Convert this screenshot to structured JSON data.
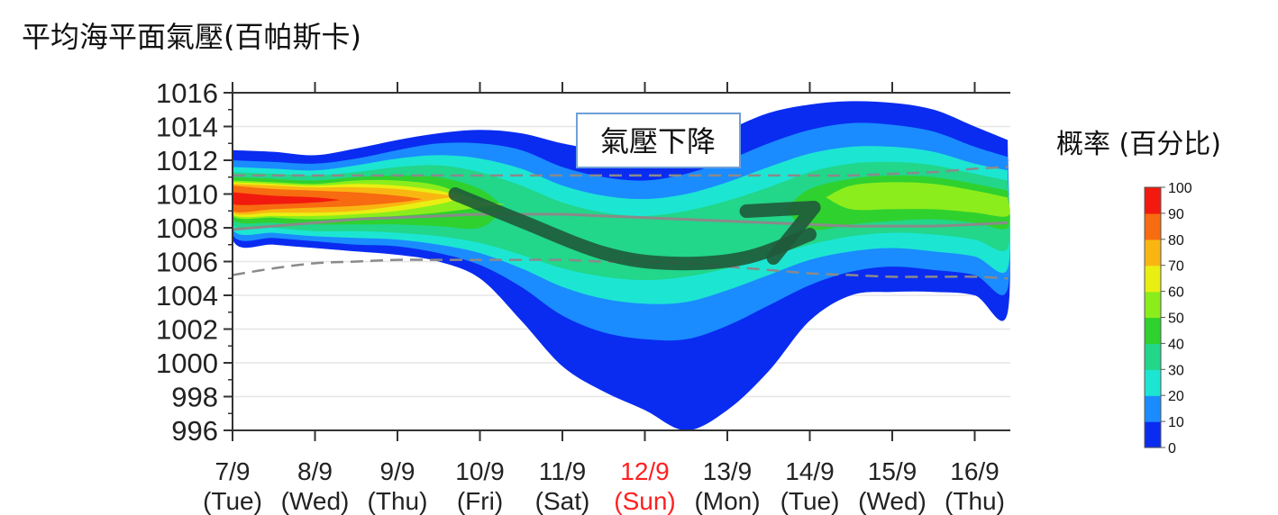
{
  "chart_data": {
    "type": "area",
    "title": "平均海平面氣壓(百帕斯卡)",
    "xlabel": "",
    "ylabel": "",
    "ylim": [
      996,
      1016
    ],
    "yticks": [
      996,
      998,
      1000,
      1002,
      1004,
      1006,
      1008,
      1010,
      1012,
      1014,
      1016
    ],
    "categories": [
      {
        "date": "7/9",
        "day": "(Tue)",
        "highlight": false
      },
      {
        "date": "8/9",
        "day": "(Wed)",
        "highlight": false
      },
      {
        "date": "9/9",
        "day": "(Thu)",
        "highlight": false
      },
      {
        "date": "10/9",
        "day": "(Fri)",
        "highlight": false
      },
      {
        "date": "11/9",
        "day": "(Sat)",
        "highlight": false
      },
      {
        "date": "12/9",
        "day": "(Sun)",
        "highlight": true
      },
      {
        "date": "13/9",
        "day": "(Mon)",
        "highlight": false
      },
      {
        "date": "14/9",
        "day": "(Tue)",
        "highlight": false
      },
      {
        "date": "15/9",
        "day": "(Wed)",
        "highlight": false
      },
      {
        "date": "16/9",
        "day": "(Thu)",
        "highlight": false
      }
    ],
    "x": [
      0,
      0.5,
      1,
      1.5,
      2,
      2.5,
      3,
      3.5,
      4,
      4.5,
      5,
      5.5,
      6,
      6.5,
      7,
      7.5,
      8,
      8.5,
      9,
      9.4
    ],
    "bands": [
      {
        "level": 0,
        "upper": [
          1012.6,
          1012.5,
          1012.3,
          1012.7,
          1013.2,
          1013.6,
          1013.8,
          1013.6,
          1013.0,
          1012.6,
          1012.5,
          1012.9,
          1013.8,
          1014.8,
          1015.3,
          1015.5,
          1015.4,
          1015.0,
          1014.0,
          1013.2
        ],
        "lower": [
          1007.3,
          1007.0,
          1006.8,
          1006.6,
          1006.4,
          1006.0,
          1005.0,
          1002.5,
          999.8,
          998.3,
          997.2,
          996.0,
          997.2,
          999.5,
          1002.5,
          1004.0,
          1004.2,
          1004.2,
          1004.0,
          1003.0
        ]
      },
      {
        "level": 10,
        "upper": [
          1012.0,
          1011.9,
          1011.8,
          1012.1,
          1012.6,
          1013.0,
          1013.0,
          1012.6,
          1011.6,
          1011.0,
          1010.8,
          1011.2,
          1012.0,
          1013.0,
          1013.8,
          1014.2,
          1014.1,
          1013.7,
          1012.8,
          1012.2
        ],
        "lower": [
          1007.6,
          1007.4,
          1007.2,
          1007.0,
          1006.9,
          1006.5,
          1005.8,
          1004.5,
          1002.8,
          1001.8,
          1001.4,
          1001.4,
          1002.2,
          1003.4,
          1004.6,
          1005.4,
          1005.7,
          1005.5,
          1005.2,
          1004.4
        ]
      },
      {
        "level": 20,
        "upper": [
          1011.6,
          1011.5,
          1011.4,
          1011.7,
          1012.1,
          1012.3,
          1012.1,
          1011.5,
          1010.5,
          1009.9,
          1009.7,
          1010.0,
          1010.7,
          1011.6,
          1012.4,
          1012.8,
          1012.8,
          1012.5,
          1011.8,
          1011.4
        ],
        "lower": [
          1007.9,
          1007.7,
          1007.5,
          1007.4,
          1007.3,
          1007.0,
          1006.5,
          1005.6,
          1004.5,
          1003.8,
          1003.5,
          1003.6,
          1004.3,
          1005.2,
          1006.1,
          1006.6,
          1006.8,
          1006.6,
          1006.3,
          1005.6
        ]
      },
      {
        "level": 30,
        "upper": [
          1011.3,
          1011.2,
          1011.1,
          1011.3,
          1011.6,
          1011.7,
          1011.3,
          1010.5,
          1009.5,
          1008.9,
          1008.7,
          1009.0,
          1009.6,
          1010.4,
          1011.3,
          1011.8,
          1011.9,
          1011.7,
          1011.2,
          1010.8
        ],
        "lower": [
          1008.2,
          1008.0,
          1007.8,
          1007.8,
          1007.7,
          1007.5,
          1007.1,
          1006.4,
          1005.6,
          1005.1,
          1004.9,
          1005.1,
          1005.6,
          1006.3,
          1007.0,
          1007.5,
          1007.7,
          1007.6,
          1007.3,
          1006.8
        ]
      },
      {
        "level": 40,
        "upper": [
          1011.0,
          1010.9,
          1010.8,
          1011.0,
          1011.1,
          1011.0,
          1010.3,
          1000.0,
          1000.0,
          1000.0,
          1000.0,
          1000.0,
          1000.0,
          1000.0,
          1010.3,
          1010.9,
          1011.1,
          1011.0,
          1010.6,
          1010.2
        ],
        "lower": [
          1008.5,
          1008.3,
          1008.2,
          1008.2,
          1008.2,
          1008.1,
          1008.0,
          1000.0,
          1000.0,
          1000.0,
          1000.0,
          1000.0,
          1000.0,
          1000.0,
          1007.9,
          1008.2,
          1008.4,
          1008.5,
          1008.3,
          1008.0
        ]
      },
      {
        "level": 50,
        "upper": [
          1010.8,
          1010.7,
          1010.6,
          1010.8,
          1010.8,
          1010.5,
          1009.6,
          1000.0,
          1000.0,
          1000.0,
          1000.0,
          1000.0,
          1000.0,
          1000.0,
          1000.0,
          1010.5,
          1010.7,
          1010.6,
          1010.2,
          1009.8
        ],
        "lower": [
          1008.7,
          1008.6,
          1008.5,
          1008.6,
          1008.7,
          1008.9,
          1009.2,
          1000.0,
          1000.0,
          1000.0,
          1000.0,
          1000.0,
          1000.0,
          1000.0,
          1000.0,
          1009.1,
          1009.1,
          1009.1,
          1008.9,
          1008.7
        ]
      },
      {
        "level": 60,
        "upper": [
          1010.7,
          1010.6,
          1010.5,
          1010.6,
          1010.5,
          1010.2,
          1000.0,
          1000.0,
          1000.0,
          1000.0,
          1000.0,
          1000.0,
          1000.0,
          1000.0,
          1000.0,
          1000.0,
          1000.0,
          1000.0,
          1000.0,
          1000.0
        ],
        "lower": [
          1008.8,
          1008.7,
          1008.7,
          1008.8,
          1009.0,
          1009.4,
          1000.0,
          1000.0,
          1000.0,
          1000.0,
          1000.0,
          1000.0,
          1000.0,
          1000.0,
          1000.0,
          1000.0,
          1000.0,
          1000.0,
          1000.0,
          1000.0
        ]
      },
      {
        "level": 70,
        "upper": [
          1010.6,
          1010.5,
          1010.4,
          1010.4,
          1010.3,
          1010.0,
          1000.0,
          1000.0,
          1000.0,
          1000.0,
          1000.0,
          1000.0,
          1000.0,
          1000.0,
          1000.0,
          1000.0,
          1000.0,
          1000.0,
          1000.0,
          1000.0
        ],
        "lower": [
          1008.9,
          1008.9,
          1008.9,
          1009.0,
          1009.3,
          1009.7,
          1000.0,
          1000.0,
          1000.0,
          1000.0,
          1000.0,
          1000.0,
          1000.0,
          1000.0,
          1000.0,
          1000.0,
          1000.0,
          1000.0,
          1000.0,
          1000.0
        ]
      },
      {
        "level": 80,
        "upper": [
          1010.5,
          1010.3,
          1010.2,
          1010.1,
          1009.9,
          1000.0,
          1000.0,
          1000.0,
          1000.0,
          1000.0,
          1000.0,
          1000.0,
          1000.0,
          1000.0,
          1000.0,
          1000.0,
          1000.0,
          1000.0,
          1000.0,
          1000.0
        ],
        "lower": [
          1009.0,
          1009.1,
          1009.2,
          1009.3,
          1009.5,
          1000.0,
          1000.0,
          1000.0,
          1000.0,
          1000.0,
          1000.0,
          1000.0,
          1000.0,
          1000.0,
          1000.0,
          1000.0,
          1000.0,
          1000.0,
          1000.0,
          1000.0
        ]
      },
      {
        "level": 90,
        "upper": [
          1010.1,
          1009.9,
          1009.8,
          1000.0,
          1000.0,
          1000.0,
          1000.0,
          1000.0,
          1000.0,
          1000.0,
          1000.0,
          1000.0,
          1000.0,
          1000.0,
          1000.0,
          1000.0,
          1000.0,
          1000.0,
          1000.0,
          1000.0
        ],
        "lower": [
          1009.4,
          1009.4,
          1009.5,
          1000.0,
          1000.0,
          1000.0,
          1000.0,
          1000.0,
          1000.0,
          1000.0,
          1000.0,
          1000.0,
          1000.0,
          1000.0,
          1000.0,
          1000.0,
          1000.0,
          1000.0,
          1000.0,
          1000.0
        ]
      }
    ],
    "climatology_mean": [
      1007.9,
      1008.1,
      1008.3,
      1008.5,
      1008.6,
      1008.7,
      1008.8,
      1008.8,
      1008.8,
      1008.7,
      1008.6,
      1008.5,
      1008.4,
      1008.3,
      1008.2,
      1008.1,
      1008.1,
      1008.1,
      1008.2,
      1008.3
    ],
    "climatology_upper": [
      1011.1,
      1011.1,
      1011.1,
      1011.1,
      1011.1,
      1011.1,
      1011.1,
      1011.1,
      1011.1,
      1011.1,
      1011.1,
      1011.1,
      1011.1,
      1011.1,
      1011.1,
      1011.1,
      1011.2,
      1011.3,
      1011.5,
      1011.6
    ],
    "climatology_lower": [
      1005.2,
      1005.6,
      1005.9,
      1006.0,
      1006.1,
      1006.1,
      1006.1,
      1006.1,
      1006.1,
      1006.0,
      1006.0,
      1005.9,
      1005.7,
      1005.5,
      1005.3,
      1005.2,
      1005.1,
      1005.1,
      1005.1,
      1005.0
    ],
    "trend_arrow": {
      "x": [
        2.7,
        3.5,
        4.5,
        5.3,
        6.2,
        7.0,
        7.3
      ],
      "y": [
        1010.0,
        1008.4,
        1006.5,
        1005.9,
        1006.2,
        1007.6,
        1008.8
      ]
    },
    "annotation": "氣壓下降",
    "colorbar": {
      "title": "概率 (百分比)",
      "ticks": [
        0,
        10,
        20,
        30,
        40,
        50,
        60,
        70,
        80,
        90,
        100
      ],
      "colors": [
        "#0a2cf0",
        "#1a8cff",
        "#1ce6d2",
        "#22d68a",
        "#2fd12f",
        "#8ced1c",
        "#e9ef12",
        "#f9b612",
        "#f76b11",
        "#f21a0e",
        "#b50a0a"
      ]
    },
    "grid": true,
    "highlight_color": "#ff2020"
  }
}
